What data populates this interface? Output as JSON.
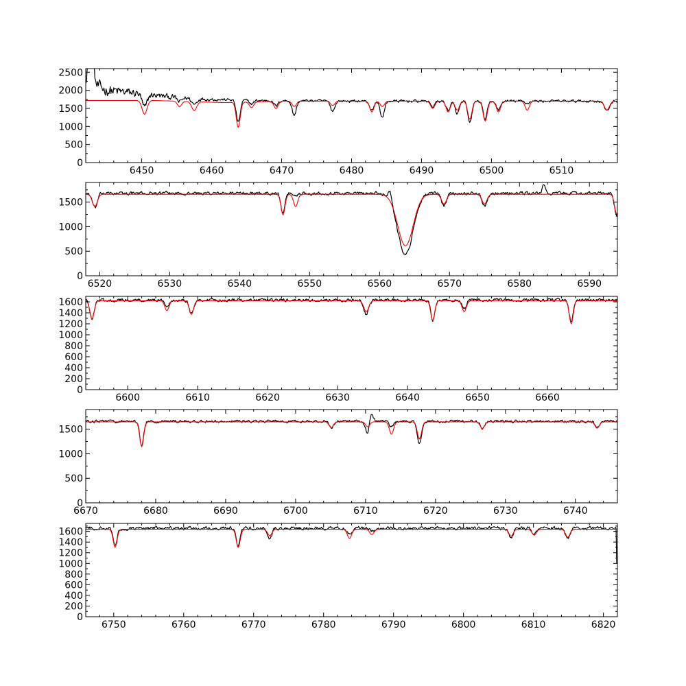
{
  "colors": {
    "observed": "#000000",
    "model": "#ff0000",
    "background": "#ffffff"
  },
  "chart_data": [
    {
      "type": "line",
      "panel": 1,
      "xlim": [
        6442,
        6518
      ],
      "ylim": [
        0,
        2600
      ],
      "xticks": [
        6450,
        6460,
        6470,
        6480,
        6490,
        6500,
        6510
      ],
      "xtick_labels": [
        "6450",
        "6460",
        "6470",
        "6480",
        "6490",
        "6500",
        "6510"
      ],
      "yticks": [
        0,
        500,
        1000,
        1500,
        2000,
        2500
      ],
      "ytick_labels": [
        "0",
        "500",
        "1000",
        "1500",
        "2000",
        "2500"
      ],
      "continuum_model": [
        [
          6442,
          1720
        ],
        [
          6451,
          1720
        ],
        [
          6455,
          1700
        ],
        [
          6458,
          1680
        ],
        [
          6462,
          1660
        ],
        [
          6470,
          1700
        ],
        [
          6478,
          1700
        ],
        [
          6490,
          1700
        ],
        [
          6518,
          1700
        ]
      ],
      "continuum_observed": [
        [
          6442,
          2250
        ],
        [
          6445,
          2000
        ],
        [
          6450,
          1900
        ],
        [
          6455,
          1800
        ],
        [
          6460,
          1750
        ],
        [
          6466,
          1720
        ],
        [
          6480,
          1700
        ],
        [
          6518,
          1700
        ]
      ],
      "noise_amp": [
        [
          6442,
          220
        ],
        [
          6447,
          150
        ],
        [
          6452,
          90
        ],
        [
          6458,
          60
        ],
        [
          6462,
          40
        ],
        [
          6518,
          40
        ]
      ],
      "lines": [
        {
          "x": 6450.4,
          "depth_model": 380,
          "depth_obs": 380,
          "width": 0.35
        },
        {
          "x": 6455.4,
          "depth_model": 150,
          "depth_obs": 120,
          "width": 0.3
        },
        {
          "x": 6457.5,
          "depth_model": 240,
          "depth_obs": 160,
          "width": 0.35
        },
        {
          "x": 6463.8,
          "depth_model": 700,
          "depth_obs": 620,
          "width": 0.28
        },
        {
          "x": 6465.7,
          "depth_model": 160,
          "depth_obs": 100,
          "width": 0.3
        },
        {
          "x": 6469.2,
          "depth_model": 200,
          "depth_obs": 150,
          "width": 0.3
        },
        {
          "x": 6471.8,
          "depth_model": 150,
          "depth_obs": 400,
          "width": 0.3
        },
        {
          "x": 6477.3,
          "depth_model": 120,
          "depth_obs": 280,
          "width": 0.3
        },
        {
          "x": 6482.9,
          "depth_model": 300,
          "depth_obs": 260,
          "width": 0.3
        },
        {
          "x": 6484.4,
          "depth_model": 150,
          "depth_obs": 450,
          "width": 0.3
        },
        {
          "x": 6491.6,
          "depth_model": 200,
          "depth_obs": 150,
          "width": 0.3
        },
        {
          "x": 6493.8,
          "depth_model": 300,
          "depth_obs": 250,
          "width": 0.3
        },
        {
          "x": 6495.1,
          "depth_model": 250,
          "depth_obs": 350,
          "width": 0.3
        },
        {
          "x": 6496.9,
          "depth_model": 500,
          "depth_obs": 600,
          "width": 0.3
        },
        {
          "x": 6499.1,
          "depth_model": 550,
          "depth_obs": 500,
          "width": 0.3
        },
        {
          "x": 6501.0,
          "depth_model": 300,
          "depth_obs": 250,
          "width": 0.3
        },
        {
          "x": 6505.1,
          "depth_model": 250,
          "depth_obs": 60,
          "width": 0.3
        },
        {
          "x": 6516.5,
          "depth_model": 250,
          "depth_obs": 280,
          "width": 0.35
        }
      ],
      "spikes": [
        [
          6442.5,
          800
        ],
        [
          6442.9,
          900
        ]
      ]
    },
    {
      "type": "line",
      "panel": 2,
      "xlim": [
        6518,
        6594
      ],
      "ylim": [
        0,
        1900
      ],
      "xticks": [
        6520,
        6530,
        6540,
        6550,
        6560,
        6570,
        6580,
        6590
      ],
      "xtick_labels": [
        "6520",
        "6530",
        "6540",
        "6550",
        "6560",
        "6570",
        "6580",
        "6590"
      ],
      "yticks": [
        0,
        500,
        1000,
        1500
      ],
      "ytick_labels": [
        "0",
        "500",
        "1000",
        "1500"
      ],
      "continuum_model": [
        [
          6518,
          1660
        ],
        [
          6594,
          1660
        ]
      ],
      "continuum_observed": [
        [
          6518,
          1680
        ],
        [
          6594,
          1680
        ]
      ],
      "noise_amp": [
        [
          6518,
          35
        ],
        [
          6594,
          35
        ]
      ],
      "lines": [
        {
          "x": 6519.3,
          "depth_model": 250,
          "depth_obs": 300,
          "width": 0.35
        },
        {
          "x": 6546.2,
          "depth_model": 420,
          "depth_obs": 430,
          "width": 0.28
        },
        {
          "x": 6548.0,
          "depth_model": 250,
          "depth_obs": 50,
          "width": 0.3
        },
        {
          "x": 6563.7,
          "depth_model": 1050,
          "depth_obs": 1250,
          "width": 1.1
        },
        {
          "x": 6569.2,
          "depth_model": 200,
          "depth_obs": 250,
          "width": 0.35
        },
        {
          "x": 6575.0,
          "depth_model": 200,
          "depth_obs": 250,
          "width": 0.35
        },
        {
          "x": 6593.9,
          "depth_model": 400,
          "depth_obs": 450,
          "width": 0.3
        }
      ],
      "spikes": [
        [
          6561.5,
          200
        ],
        [
          6583.5,
          150
        ]
      ]
    },
    {
      "type": "line",
      "panel": 3,
      "xlim": [
        6594,
        6670
      ],
      "ylim": [
        0,
        1700
      ],
      "xticks": [
        6600,
        6610,
        6620,
        6630,
        6640,
        6650,
        6660
      ],
      "xtick_labels": [
        "6600",
        "6610",
        "6620",
        "6630",
        "6640",
        "6650",
        "6660"
      ],
      "yticks": [
        0,
        200,
        400,
        600,
        800,
        1000,
        1200,
        1400,
        1600
      ],
      "ytick_labels": [
        "0",
        "200",
        "400",
        "600",
        "800",
        "1000",
        "1200",
        "1400",
        "1600"
      ],
      "continuum_model": [
        [
          6594,
          1620
        ],
        [
          6670,
          1620
        ]
      ],
      "continuum_observed": [
        [
          6594,
          1630
        ],
        [
          6670,
          1630
        ]
      ],
      "noise_amp": [
        [
          6594,
          30
        ],
        [
          6670,
          30
        ]
      ],
      "lines": [
        {
          "x": 6594.9,
          "depth_model": 330,
          "depth_obs": 320,
          "width": 0.3
        },
        {
          "x": 6605.6,
          "depth_model": 180,
          "depth_obs": 100,
          "width": 0.3
        },
        {
          "x": 6609.1,
          "depth_model": 250,
          "depth_obs": 250,
          "width": 0.3
        },
        {
          "x": 6634.1,
          "depth_model": 200,
          "depth_obs": 260,
          "width": 0.35
        },
        {
          "x": 6643.6,
          "depth_model": 360,
          "depth_obs": 360,
          "width": 0.28
        },
        {
          "x": 6648.1,
          "depth_model": 200,
          "depth_obs": 150,
          "width": 0.3
        },
        {
          "x": 6663.4,
          "depth_model": 420,
          "depth_obs": 400,
          "width": 0.28
        }
      ],
      "spikes": []
    },
    {
      "type": "line",
      "panel": 4,
      "xlim": [
        6670,
        6746
      ],
      "ylim": [
        0,
        1900
      ],
      "xticks": [
        6670,
        6680,
        6690,
        6700,
        6710,
        6720,
        6730,
        6740
      ],
      "xtick_labels": [
        "6670",
        "6680",
        "6690",
        "6700",
        "6710",
        "6720",
        "6730",
        "6740"
      ],
      "yticks": [
        0,
        500,
        1000,
        1500
      ],
      "ytick_labels": [
        "0",
        "500",
        "1000",
        "1500"
      ],
      "continuum_model": [
        [
          6670,
          1650
        ],
        [
          6746,
          1650
        ]
      ],
      "continuum_observed": [
        [
          6670,
          1660
        ],
        [
          6746,
          1660
        ]
      ],
      "noise_amp": [
        [
          6670,
          30
        ],
        [
          6746,
          30
        ]
      ],
      "lines": [
        {
          "x": 6678.0,
          "depth_model": 500,
          "depth_obs": 500,
          "width": 0.28
        },
        {
          "x": 6705.1,
          "depth_model": 120,
          "depth_obs": 130,
          "width": 0.3
        },
        {
          "x": 6710.3,
          "depth_model": 100,
          "depth_obs": 250,
          "width": 0.3
        },
        {
          "x": 6713.7,
          "depth_model": 250,
          "depth_obs": 120,
          "width": 0.3
        },
        {
          "x": 6717.7,
          "depth_model": 350,
          "depth_obs": 450,
          "width": 0.3
        },
        {
          "x": 6726.7,
          "depth_model": 140,
          "depth_obs": 150,
          "width": 0.3
        },
        {
          "x": 6743.1,
          "depth_model": 130,
          "depth_obs": 150,
          "width": 0.3
        }
      ],
      "spikes": [
        [
          6710.8,
          200
        ]
      ]
    },
    {
      "type": "line",
      "panel": 5,
      "xlim": [
        6746,
        6822
      ],
      "ylim": [
        0,
        1750
      ],
      "xticks": [
        6750,
        6760,
        6770,
        6780,
        6790,
        6800,
        6810,
        6820
      ],
      "xtick_labels": [
        "6750",
        "6760",
        "6770",
        "6780",
        "6790",
        "6800",
        "6810",
        "6820"
      ],
      "yticks": [
        0,
        200,
        400,
        600,
        800,
        1000,
        1200,
        1400,
        1600
      ],
      "ytick_labels": [
        "0",
        "200",
        "400",
        "600",
        "800",
        "1000",
        "1200",
        "1400",
        "1600"
      ],
      "continuum_model": [
        [
          6746,
          1640
        ],
        [
          6822,
          1640
        ]
      ],
      "continuum_observed": [
        [
          6746,
          1660
        ],
        [
          6822,
          1660
        ]
      ],
      "noise_amp": [
        [
          6746,
          35
        ],
        [
          6822,
          35
        ]
      ],
      "lines": [
        {
          "x": 6750.2,
          "depth_model": 340,
          "depth_obs": 340,
          "width": 0.28
        },
        {
          "x": 6767.8,
          "depth_model": 340,
          "depth_obs": 340,
          "width": 0.28
        },
        {
          "x": 6772.3,
          "depth_model": 120,
          "depth_obs": 200,
          "width": 0.3
        },
        {
          "x": 6783.7,
          "depth_model": 170,
          "depth_obs": 120,
          "width": 0.3
        },
        {
          "x": 6786.9,
          "depth_model": 100,
          "depth_obs": 60,
          "width": 0.3
        },
        {
          "x": 6806.8,
          "depth_model": 130,
          "depth_obs": 180,
          "width": 0.3
        },
        {
          "x": 6810.1,
          "depth_model": 110,
          "depth_obs": 120,
          "width": 0.3
        },
        {
          "x": 6814.9,
          "depth_model": 150,
          "depth_obs": 200,
          "width": 0.3
        }
      ],
      "spikes": [],
      "edge_drop": [
        6821.9,
        1000
      ]
    }
  ]
}
